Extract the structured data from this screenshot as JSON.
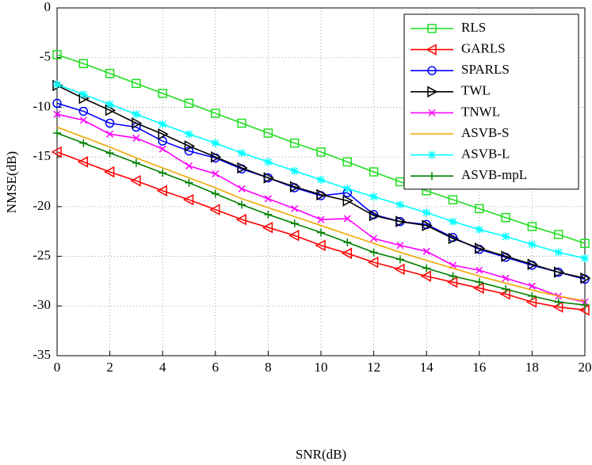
{
  "chart_data": {
    "type": "line",
    "x_label": "SNR(dB)",
    "y_label": "NMSE(dB)",
    "x": [
      0,
      1,
      2,
      3,
      4,
      5,
      6,
      7,
      8,
      9,
      10,
      11,
      12,
      13,
      14,
      15,
      16,
      17,
      18,
      19,
      20
    ],
    "xlim": [
      0,
      20
    ],
    "ylim": [
      -35,
      0
    ],
    "xticks": [
      0,
      2,
      4,
      6,
      8,
      10,
      12,
      14,
      16,
      18,
      20
    ],
    "yticks": [
      0,
      -5,
      -10,
      -15,
      -20,
      -25,
      -30,
      -35
    ],
    "grid": true,
    "legend": "upper right",
    "series": [
      {
        "name": "RLS",
        "color": "#22dd22",
        "marker": "square",
        "values": [
          -4.7,
          -5.6,
          -6.6,
          -7.6,
          -8.6,
          -9.6,
          -10.6,
          -11.6,
          -12.6,
          -13.6,
          -14.5,
          -15.5,
          -16.5,
          -17.5,
          -18.4,
          -19.3,
          -20.2,
          -21.1,
          -22.0,
          -22.8,
          -23.7
        ]
      },
      {
        "name": "GARLS",
        "color": "#ff0000",
        "marker": "triangle-left",
        "values": [
          -14.5,
          -15.5,
          -16.5,
          -17.4,
          -18.4,
          -19.3,
          -20.3,
          -21.3,
          -22.1,
          -22.9,
          -23.9,
          -24.7,
          -25.6,
          -26.3,
          -27.0,
          -27.6,
          -28.2,
          -28.8,
          -29.6,
          -30.1,
          -30.4
        ]
      },
      {
        "name": "SPARLS",
        "color": "#0000ff",
        "marker": "circle",
        "values": [
          -9.6,
          -10.4,
          -11.6,
          -12.0,
          -13.4,
          -14.4,
          -15.1,
          -16.2,
          -17.1,
          -18.1,
          -18.9,
          -18.6,
          -20.8,
          -21.5,
          -21.8,
          -23.1,
          -24.3,
          -25.1,
          -25.9,
          -26.6,
          -27.3
        ]
      },
      {
        "name": "TWL",
        "color": "#000000",
        "marker": "triangle-right",
        "values": [
          -7.8,
          -9.1,
          -10.3,
          -11.6,
          -12.7,
          -13.9,
          -15.0,
          -16.1,
          -17.1,
          -18.0,
          -18.8,
          -19.4,
          -20.9,
          -21.5,
          -21.9,
          -23.2,
          -24.2,
          -25.0,
          -25.8,
          -26.6,
          -27.2
        ]
      },
      {
        "name": "TNWL",
        "color": "#ff00ff",
        "marker": "x",
        "values": [
          -10.7,
          -11.3,
          -12.7,
          -13.1,
          -14.2,
          -15.9,
          -16.7,
          -18.2,
          -19.2,
          -20.2,
          -21.3,
          -21.2,
          -23.2,
          -23.9,
          -24.5,
          -25.9,
          -26.4,
          -27.2,
          -28.0,
          -29.0,
          -29.6
        ]
      },
      {
        "name": "ASVB-S",
        "color": "#f0a800",
        "marker": "none",
        "values": [
          -12.0,
          -13.0,
          -14.0,
          -15.1,
          -16.1,
          -17.1,
          -18.1,
          -19.2,
          -20.1,
          -21.0,
          -21.9,
          -22.8,
          -23.7,
          -24.6,
          -25.4,
          -26.2,
          -27.0,
          -27.7,
          -28.4,
          -29.0,
          -29.5
        ]
      },
      {
        "name": "ASVB-L",
        "color": "#00ffff",
        "marker": "asterisk",
        "values": [
          -7.7,
          -8.7,
          -9.7,
          -10.7,
          -11.7,
          -12.7,
          -13.6,
          -14.6,
          -15.5,
          -16.4,
          -17.3,
          -18.2,
          -19.0,
          -19.8,
          -20.6,
          -21.5,
          -22.3,
          -23.0,
          -23.8,
          -24.6,
          -25.2
        ]
      },
      {
        "name": "ASVB-mpL",
        "color": "#008000",
        "marker": "plus",
        "values": [
          -12.6,
          -13.6,
          -14.6,
          -15.6,
          -16.6,
          -17.6,
          -18.7,
          -19.8,
          -20.8,
          -21.7,
          -22.6,
          -23.6,
          -24.6,
          -25.3,
          -26.2,
          -27.0,
          -27.6,
          -28.3,
          -29.0,
          -29.6,
          -29.9
        ]
      }
    ]
  }
}
